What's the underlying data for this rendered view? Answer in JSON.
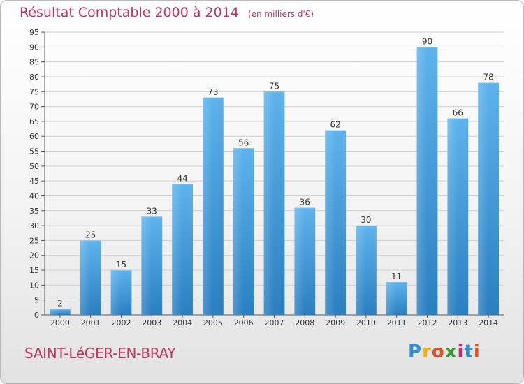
{
  "header": {
    "title": "Résultat Comptable 2000 à 2014",
    "unit": "(en milliers d'€)"
  },
  "footer": {
    "commune": "SAINT-LéGER-EN-BRAY",
    "logo_letters": [
      "P",
      "r",
      "o",
      "x",
      "i",
      "t",
      "i"
    ],
    "logo_colors": [
      "#2a8fd8",
      "#f0b000",
      "#e05020",
      "#3a9a30",
      "#c03070",
      "#2a8fd8",
      "#e05020"
    ]
  },
  "colors": {
    "bar_top": "#5eb3ec",
    "bar_bottom": "#2a7fc0",
    "text_accent": "#c0345e",
    "grid": "#cfcfcf"
  },
  "chart_data": {
    "type": "bar",
    "title": "Résultat Comptable 2000 à 2014",
    "categories": [
      "2000",
      "2001",
      "2002",
      "2003",
      "2004",
      "2005",
      "2006",
      "2007",
      "2008",
      "2009",
      "2010",
      "2011",
      "2012",
      "2013",
      "2014"
    ],
    "values": [
      2,
      25,
      15,
      33,
      44,
      73,
      56,
      75,
      36,
      62,
      30,
      11,
      90,
      66,
      78
    ],
    "ylim": [
      0,
      95
    ],
    "yticks": [
      0,
      5,
      10,
      15,
      20,
      25,
      30,
      35,
      40,
      45,
      50,
      55,
      60,
      65,
      70,
      75,
      80,
      85,
      90,
      95
    ],
    "grid": true,
    "data_labels": true
  }
}
